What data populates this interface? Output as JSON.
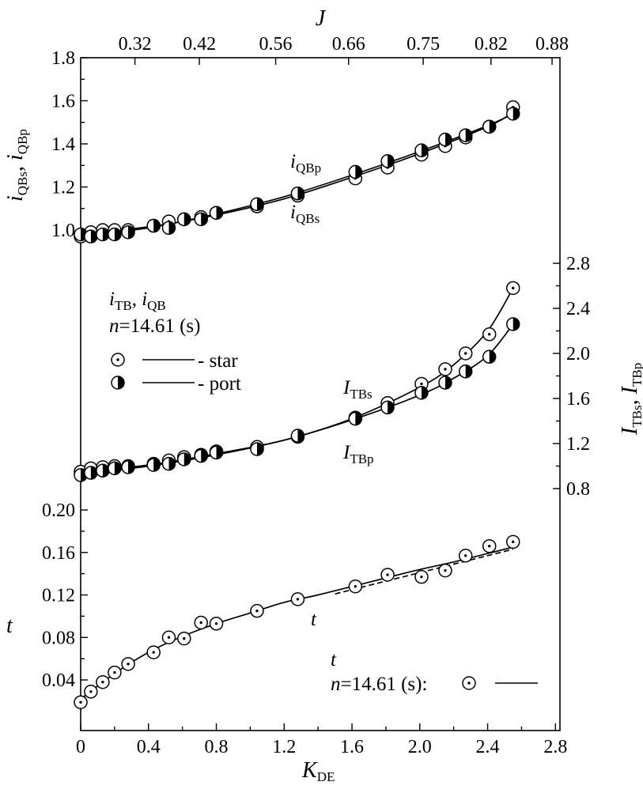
{
  "chart_data": {
    "type": "scatter",
    "title": "",
    "x_axis": {
      "label": "K",
      "label_sub": "DE",
      "range": [
        0,
        2.8
      ],
      "ticks": [
        "0",
        "0.4",
        "0.8",
        "1.2",
        "1.6",
        "2.0",
        "2.4",
        "2.8"
      ]
    },
    "top_axis": {
      "label": "J",
      "ticks": [
        "0.32",
        "0.42",
        "0.56",
        "0.66",
        "0.75",
        "0.82",
        "0.88"
      ],
      "tick_at_kde": [
        0.32,
        0.7,
        1.15,
        1.58,
        2.02,
        2.42,
        2.78
      ]
    },
    "left_upper_axis": {
      "label_parts": [
        {
          "t": "i",
          "sub": "QBs"
        },
        {
          "t": ", ",
          "sub": ""
        },
        {
          "t": "i",
          "sub": "QBp"
        }
      ],
      "range": [
        1.0,
        1.8
      ],
      "ticks": [
        "1.0",
        "1.2",
        "1.4",
        "1.6",
        "1.8"
      ]
    },
    "right_axis": {
      "label_parts": [
        {
          "t": "I",
          "sub": "TBs"
        },
        {
          "t": ", ",
          "sub": ""
        },
        {
          "t": "I",
          "sub": "TBp"
        }
      ],
      "range": [
        0.8,
        2.8
      ],
      "ticks": [
        "0.8",
        "1.2",
        "1.6",
        "2.0",
        "2.4",
        "2.8"
      ]
    },
    "left_lower_axis": {
      "label": "t",
      "range": [
        0.04,
        0.2
      ],
      "ticks": [
        "0.04",
        "0.08",
        "0.12",
        "0.16",
        "0.20"
      ]
    },
    "series": [
      {
        "name": "iQBs - star",
        "axis": "left_upper",
        "marker": "circle-dot",
        "x": [
          0,
          0.06,
          0.13,
          0.2,
          0.28,
          0.43,
          0.52,
          0.61,
          0.71,
          0.8,
          1.04,
          1.28,
          1.62,
          1.81,
          2.01,
          2.15,
          2.27,
          2.41,
          2.55
        ],
        "y": [
          0.97,
          0.99,
          1.0,
          1.0,
          1.0,
          1.02,
          1.04,
          1.05,
          1.06,
          1.08,
          1.11,
          1.16,
          1.24,
          1.29,
          1.35,
          1.39,
          1.43,
          1.48,
          1.57
        ]
      },
      {
        "name": "iQBp - port",
        "axis": "left_upper",
        "marker": "half-filled",
        "x": [
          0,
          0.06,
          0.13,
          0.2,
          0.28,
          0.43,
          0.52,
          0.61,
          0.71,
          0.8,
          1.04,
          1.28,
          1.62,
          1.81,
          2.01,
          2.15,
          2.27,
          2.41,
          2.55
        ],
        "y": [
          0.98,
          0.97,
          0.98,
          0.98,
          0.99,
          1.02,
          1.01,
          1.05,
          1.05,
          1.08,
          1.12,
          1.17,
          1.27,
          1.32,
          1.37,
          1.42,
          1.44,
          1.48,
          1.54
        ]
      },
      {
        "name": "ITBs - star",
        "axis": "right",
        "marker": "circle-dot",
        "x": [
          0,
          0.06,
          0.13,
          0.2,
          0.28,
          0.43,
          0.52,
          0.61,
          0.71,
          0.8,
          1.04,
          1.28,
          1.62,
          1.81,
          2.01,
          2.15,
          2.27,
          2.41,
          2.55
        ],
        "y": [
          0.95,
          0.98,
          0.99,
          1.0,
          1.0,
          1.02,
          1.05,
          1.08,
          1.1,
          1.13,
          1.17,
          1.26,
          1.43,
          1.56,
          1.73,
          1.86,
          2.0,
          2.17,
          2.58
        ]
      },
      {
        "name": "ITBp - port",
        "axis": "right",
        "marker": "half-filled",
        "x": [
          0,
          0.06,
          0.13,
          0.2,
          0.28,
          0.43,
          0.52,
          0.61,
          0.71,
          0.8,
          1.04,
          1.28,
          1.62,
          1.81,
          2.01,
          2.15,
          2.27,
          2.41,
          2.55
        ],
        "y": [
          0.92,
          0.94,
          0.96,
          0.98,
          0.99,
          1.01,
          1.02,
          1.06,
          1.09,
          1.12,
          1.15,
          1.27,
          1.42,
          1.52,
          1.65,
          1.74,
          1.84,
          1.97,
          2.26
        ]
      },
      {
        "name": "t",
        "axis": "left_lower",
        "marker": "circle-dot",
        "x": [
          0,
          0.06,
          0.13,
          0.2,
          0.28,
          0.43,
          0.52,
          0.61,
          0.71,
          0.8,
          1.04,
          1.28,
          1.62,
          1.81,
          2.01,
          2.15,
          2.27,
          2.41,
          2.55
        ],
        "y": [
          0.019,
          0.029,
          0.038,
          0.047,
          0.055,
          0.066,
          0.08,
          0.079,
          0.094,
          0.093,
          0.105,
          0.116,
          0.128,
          0.139,
          0.137,
          0.143,
          0.157,
          0.166,
          0.17
        ]
      }
    ],
    "curves": [
      {
        "name": "iQBs fit",
        "axis": "left_upper",
        "style": "solid",
        "x": [
          0,
          0.4,
          0.8,
          1.2,
          1.6,
          2.0,
          2.4,
          2.55
        ],
        "y": [
          0.985,
          1.015,
          1.07,
          1.145,
          1.245,
          1.355,
          1.48,
          1.545
        ]
      },
      {
        "name": "iQBp fit",
        "axis": "left_upper",
        "style": "solid",
        "x": [
          0,
          0.4,
          0.8,
          1.2,
          1.6,
          2.0,
          2.4,
          2.55
        ],
        "y": [
          0.975,
          1.01,
          1.075,
          1.155,
          1.255,
          1.365,
          1.485,
          1.54
        ]
      },
      {
        "name": "ITBs fit",
        "axis": "right",
        "style": "solid",
        "x": [
          0,
          0.4,
          0.8,
          1.2,
          1.6,
          2.0,
          2.2,
          2.4,
          2.55
        ],
        "y": [
          0.95,
          1.01,
          1.11,
          1.23,
          1.42,
          1.7,
          1.9,
          2.2,
          2.58
        ]
      },
      {
        "name": "ITBp fit",
        "axis": "right",
        "style": "solid",
        "x": [
          0,
          0.4,
          0.8,
          1.2,
          1.6,
          2.0,
          2.2,
          2.4,
          2.55
        ],
        "y": [
          0.93,
          1.0,
          1.1,
          1.23,
          1.41,
          1.63,
          1.78,
          1.98,
          2.26
        ]
      },
      {
        "name": "t fit",
        "axis": "left_lower",
        "style": "solid",
        "x": [
          0,
          0.2,
          0.4,
          0.6,
          0.8,
          1.0,
          1.2,
          1.4,
          1.6,
          1.8,
          2.0,
          2.2,
          2.4,
          2.55
        ],
        "y": [
          0.022,
          0.046,
          0.066,
          0.081,
          0.093,
          0.103,
          0.113,
          0.12,
          0.128,
          0.136,
          0.144,
          0.151,
          0.159,
          0.165
        ]
      },
      {
        "name": "t dashed",
        "axis": "left_lower",
        "style": "dashed",
        "x": [
          1.5,
          1.8,
          2.1,
          2.4,
          2.55
        ],
        "y": [
          0.121,
          0.133,
          0.145,
          0.157,
          0.163
        ]
      }
    ],
    "annotations": {
      "iqbp": {
        "t": "i",
        "sub": "QBp"
      },
      "iqbs": {
        "t": "i",
        "sub": "QBs"
      },
      "itbs": {
        "t": "I",
        "sub": "TBs"
      },
      "itbp": {
        "t": "I",
        "sub": "TBp"
      },
      "t_curve": "t"
    },
    "legend_top": {
      "title_parts": [
        {
          "t": "i",
          "sub": "TB"
        },
        {
          "t": ", ",
          "sub": ""
        },
        {
          "t": "i",
          "sub": "QB"
        }
      ],
      "n_prefix": "n",
      "n_value": "=14.61 (s)",
      "star_label": "- star",
      "port_label": "- port"
    },
    "legend_bottom": {
      "title": "t",
      "n_prefix": "n",
      "n_value": "=14.61 (s):"
    }
  }
}
